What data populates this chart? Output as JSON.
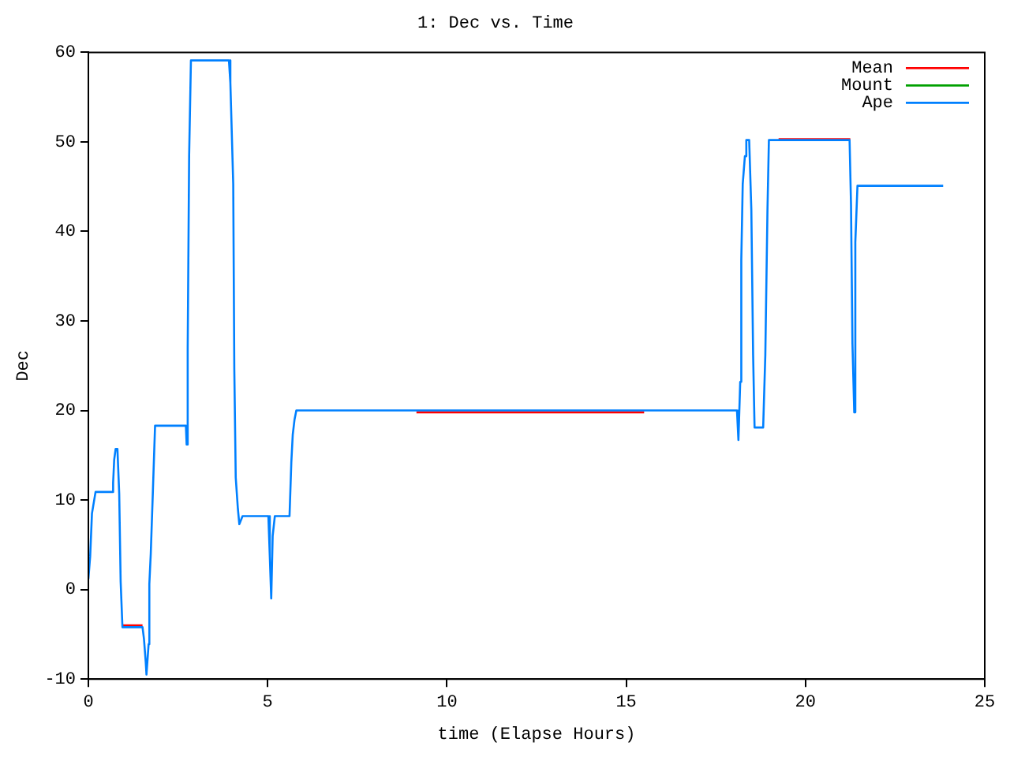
{
  "chart_data": {
    "type": "line",
    "title": "1: Dec vs. Time",
    "xlabel": "time (Elapse Hours)",
    "ylabel": "Dec",
    "xlim": [
      0,
      25
    ],
    "xticks": [
      0,
      5,
      10,
      15,
      20,
      25
    ],
    "ylim": [
      -10,
      60
    ],
    "yticks": [
      -10,
      0,
      10,
      20,
      30,
      40,
      50,
      60
    ],
    "grid": false,
    "legend": "top right",
    "marker": "none",
    "line_style": "solid",
    "series": [
      {
        "name": "Mean",
        "color": "#ff0000",
        "x": [
          0.95,
          1.51,
          1.52,
          9.15,
          15.5,
          15.51,
          19.25,
          21.25
        ],
        "values": [
          -4.0,
          -4.0,
          null,
          19.8,
          19.8,
          null,
          50.3,
          50.3
        ]
      },
      {
        "name": "Mount",
        "color": "#00a000"
      },
      {
        "name": "Ape",
        "color": "#0080ff",
        "x": [
          0,
          0.05,
          0.1,
          0.2,
          0.67,
          0.69,
          0.72,
          0.76,
          0.81,
          0.86,
          0.9,
          0.95,
          1.51,
          1.55,
          1.6,
          1.62,
          1.68,
          1.7,
          1.74,
          1.8,
          1.86,
          2.72,
          2.74,
          2.77,
          2.81,
          2.86,
          3.92,
          3.96,
          4.04,
          4.07,
          4.11,
          4.17,
          4.21,
          4.3,
          5.02,
          5.06,
          5.1,
          5.14,
          5.2,
          5.61,
          5.66,
          5.7,
          5.75,
          5.8,
          18.09,
          18.13,
          18.18,
          18.21,
          18.25,
          18.31,
          18.35,
          18.43,
          18.49,
          18.54,
          18.58,
          18.82,
          18.88,
          18.94,
          18.98,
          21.23,
          21.27,
          21.31,
          21.36,
          21.39,
          21.45,
          23.84
        ],
        "values": [
          1.2,
          3.7,
          8.5,
          10.9,
          10.9,
          11.9,
          14.5,
          15.7,
          15.7,
          10.7,
          0.9,
          -4.2,
          -4.2,
          -5.5,
          -8.1,
          -9.5,
          -6.1,
          0.6,
          4.0,
          11.1,
          18.3,
          18.3,
          16.2,
          26.9,
          48.4,
          59.1,
          59.1,
          56.6,
          45.3,
          24.6,
          12.5,
          9.0,
          7.3,
          8.2,
          8.2,
          3.7,
          -1.0,
          6.0,
          8.2,
          8.2,
          14.2,
          17.3,
          19.0,
          20.0,
          20.0,
          16.7,
          23.2,
          36.8,
          45.3,
          48.4,
          50.2,
          50.2,
          42.4,
          26.2,
          18.1,
          18.1,
          26.2,
          42.4,
          50.2,
          50.2,
          43.0,
          27.5,
          19.8,
          38.8,
          45.1,
          45.1
        ]
      }
    ]
  }
}
